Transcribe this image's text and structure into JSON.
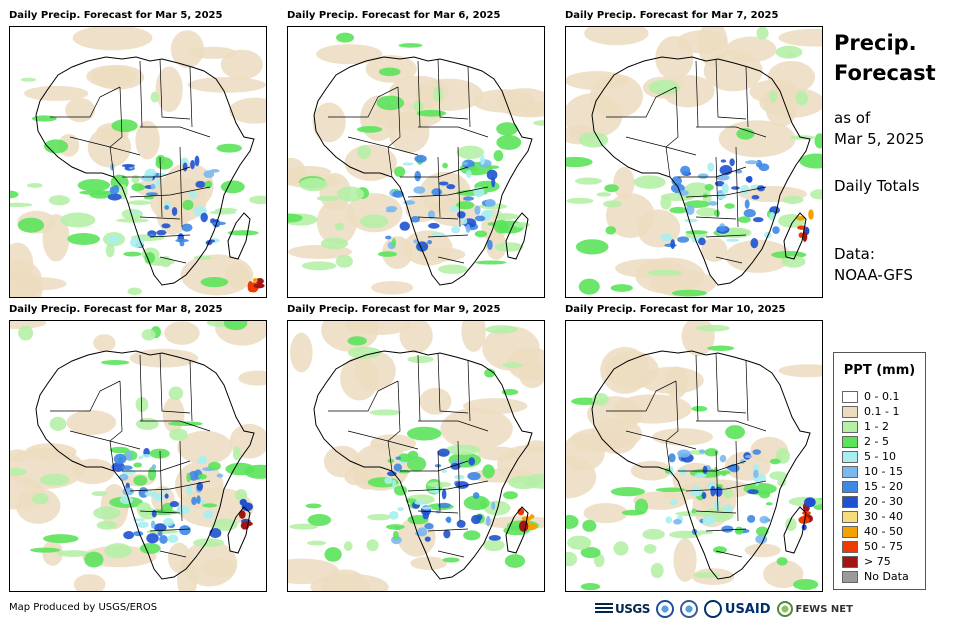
{
  "panels": [
    {
      "title": "Daily Precip. Forecast for Mar 5, 2025",
      "date": "Mar 5, 2025"
    },
    {
      "title": "Daily Precip. Forecast for Mar 6, 2025",
      "date": "Mar 6, 2025"
    },
    {
      "title": "Daily Precip. Forecast for Mar 7, 2025",
      "date": "Mar 7, 2025"
    },
    {
      "title": "Daily Precip. Forecast for Mar 8, 2025",
      "date": "Mar 8, 2025"
    },
    {
      "title": "Daily Precip. Forecast for Mar 9, 2025",
      "date": "Mar 9, 2025"
    },
    {
      "title": "Daily Precip. Forecast for Mar 10, 2025",
      "date": "Mar 10, 2025"
    }
  ],
  "side": {
    "title_line1": "Precip.",
    "title_line2": "Forecast",
    "as_of_label": "as of",
    "as_of_date": "Mar 5, 2025",
    "totals": "Daily Totals",
    "data_label": "Data:",
    "data_source": "NOAA-GFS"
  },
  "legend": {
    "title": "PPT (mm)",
    "items": [
      {
        "label": "0 - 0.1",
        "color": "#ffffff"
      },
      {
        "label": "0.1 - 1",
        "color": "#ecdcbf"
      },
      {
        "label": "1 - 2",
        "color": "#b5f0a7"
      },
      {
        "label": "2 - 5",
        "color": "#5be35b"
      },
      {
        "label": "5 - 10",
        "color": "#a8eeee"
      },
      {
        "label": "10 - 15",
        "color": "#7ab8f0"
      },
      {
        "label": "15 - 20",
        "color": "#3d87e6"
      },
      {
        "label": "20 - 30",
        "color": "#1e52d0"
      },
      {
        "label": "30 - 40",
        "color": "#f7dc7c"
      },
      {
        "label": "40 - 50",
        "color": "#f5a200"
      },
      {
        "label": "50 - 75",
        "color": "#ee3a00"
      },
      {
        "label": "> 75",
        "color": "#a31414"
      },
      {
        "label": "No Data",
        "color": "#9b9b9b"
      }
    ]
  },
  "footer": {
    "credit": "Map Produced by USGS/EROS",
    "logos": [
      "USGS",
      "NOAA",
      "DOC",
      "USAID",
      "FEWS NET"
    ]
  }
}
